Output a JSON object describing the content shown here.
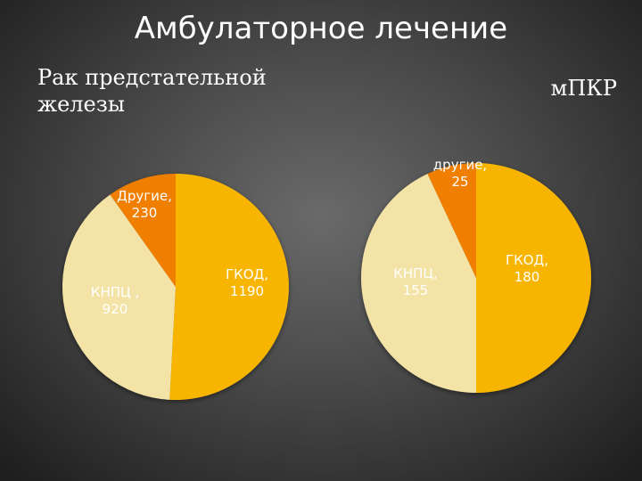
{
  "slide": {
    "title": "Амбулаторное лечение"
  },
  "chart_data": [
    {
      "type": "pie",
      "title": "Рак предстательной железы",
      "slices": [
        {
          "name": "ГКОД",
          "value": 1190,
          "label_line1": "ГКОД,",
          "label_line2": "1190",
          "color": "#f7b500"
        },
        {
          "name": "КНПЦ",
          "value": 920,
          "label_line1": "КНПЦ ,",
          "label_line2": "920",
          "color": "#f4e3a6"
        },
        {
          "name": "Другие",
          "value": 230,
          "label_line1": "Другие,",
          "label_line2": "230",
          "color": "#f07f00"
        }
      ]
    },
    {
      "type": "pie",
      "title": "мПКР",
      "slices": [
        {
          "name": "ГКОД",
          "value": 180,
          "label_line1": "ГКОД,",
          "label_line2": "180",
          "color": "#f7b500"
        },
        {
          "name": "КНПЦ",
          "value": 155,
          "label_line1": "КНПЦ,",
          "label_line2": "155",
          "color": "#f4e3a6"
        },
        {
          "name": "другие",
          "value": 25,
          "label_line1": "другие,",
          "label_line2": "25",
          "color": "#f07f00"
        }
      ]
    }
  ]
}
